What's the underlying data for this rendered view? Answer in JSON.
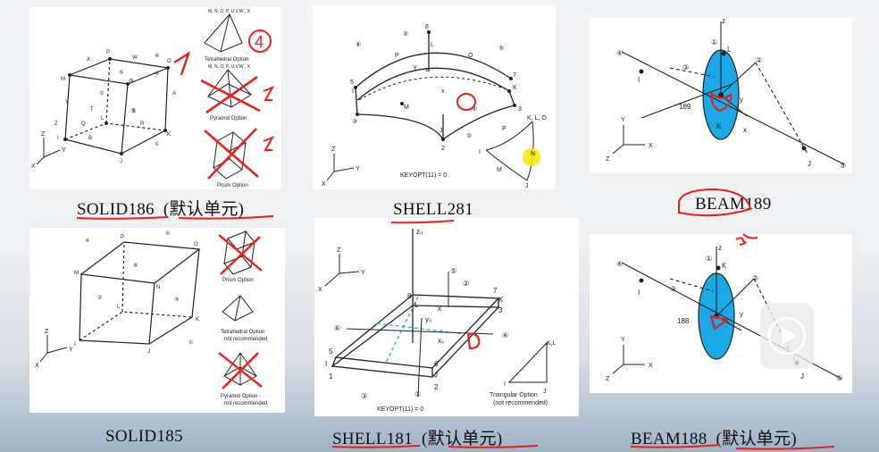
{
  "captions": {
    "solid186": "SOLID186",
    "solid186_extra": "(默认单元)",
    "shell281": "SHELL281",
    "beam189": "BEAM189",
    "solid185": "SOLID185",
    "shell181": "SHELL181",
    "shell181_extra": "(默认单元)",
    "beam188": "BEAM188",
    "beam188_extra": "(默认单元)"
  },
  "solid186": {
    "options": [
      "Tetrahedral Option",
      "Pyramid Option",
      "Prism Option"
    ],
    "tet_nodes": "M, N, O, P, U,V,W , X",
    "pyr_nodes": "M, N, O, P, U,V,W , X",
    "annotation": "4"
  },
  "solid185": {
    "options": [
      "Prism Option",
      "Tetrahedral Option",
      "not recommended",
      "Pyramid Option -",
      "not recommended"
    ]
  },
  "shell281": {
    "keyopt": "KEYOPT(11) = 0"
  },
  "shell181": {
    "keyopt": "KEYOPT(11) = 0",
    "tri_option": "Triangular Option",
    "tri_note": "(not recommended)"
  },
  "beam189": {
    "id": "189"
  },
  "beam188": {
    "id": "188"
  },
  "colors": {
    "annotation_red": "#e8211c",
    "beam_blue": "#1aa9e6",
    "highlight_yellow": "#f7e600"
  }
}
